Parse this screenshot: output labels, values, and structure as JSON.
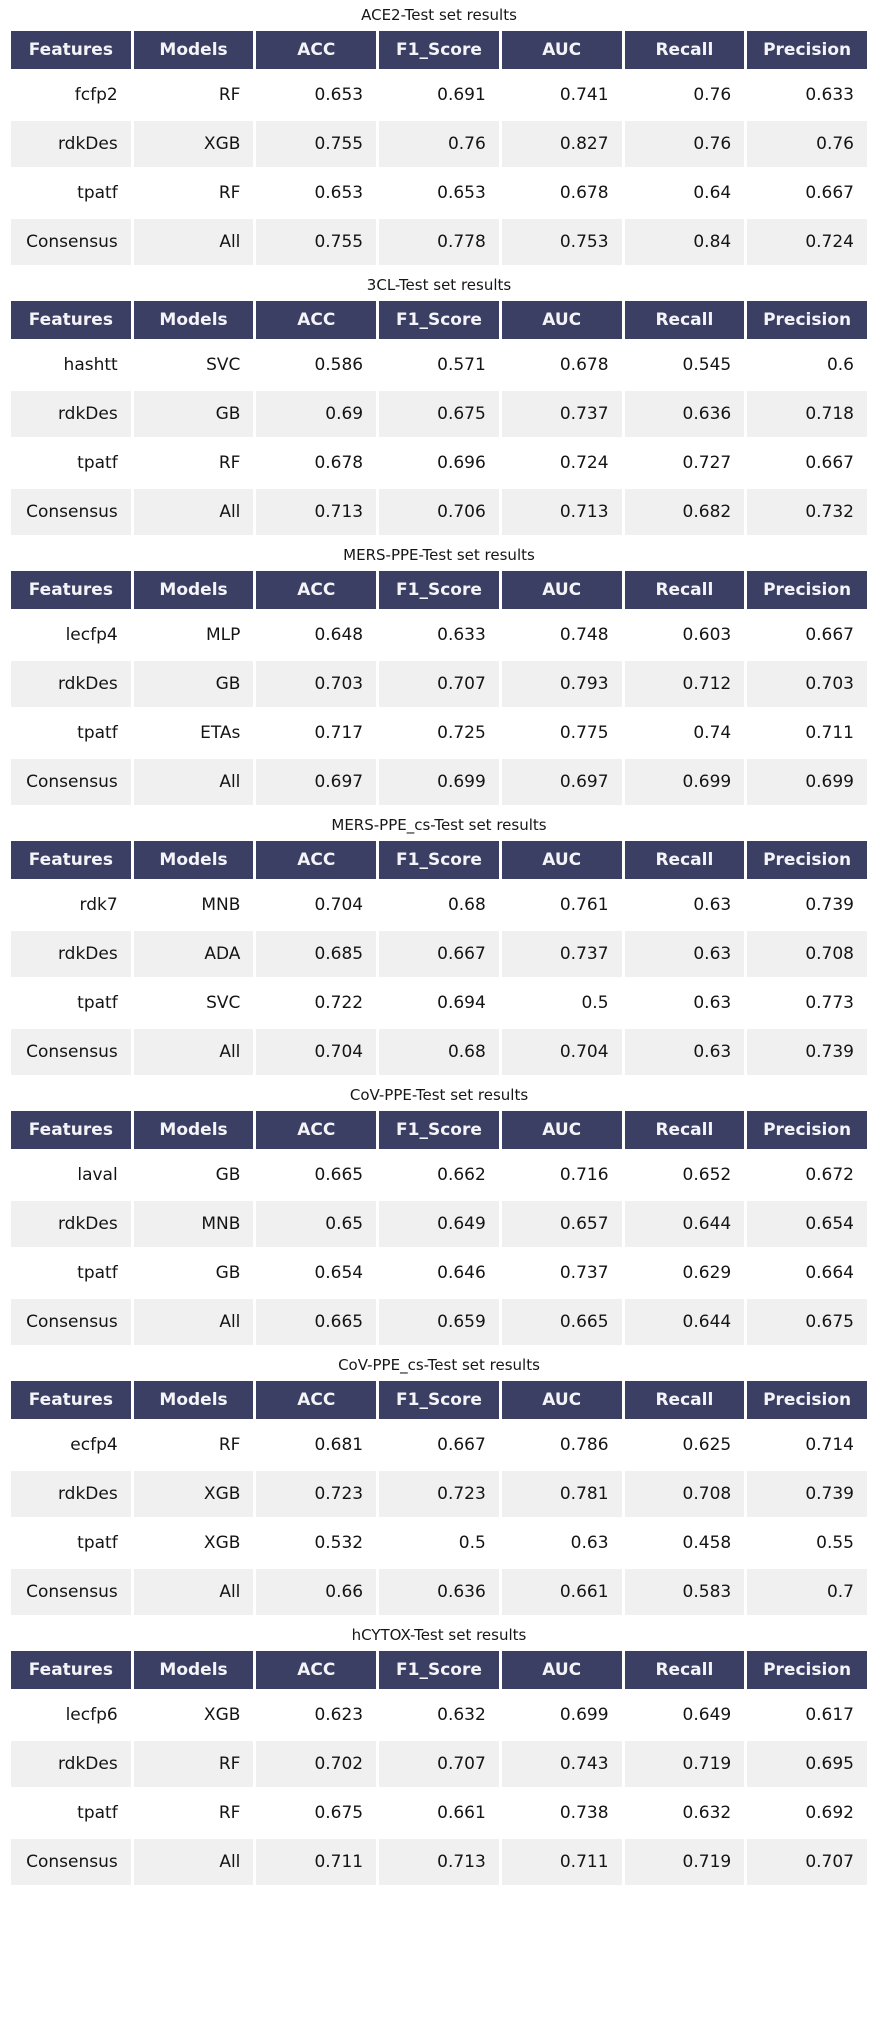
{
  "colors": {
    "header_bg": "#3a3f63",
    "header_text": "#f4f4f8",
    "row_bg": "#ffffff",
    "row_alt_bg": "#f0f0f1",
    "body_text": "#141414",
    "page_bg": "#ffffff"
  },
  "chart_data": [
    {
      "type": "table",
      "title": "ACE2-Test set results",
      "columns": [
        "Features",
        "Models",
        "ACC",
        "F1_Score",
        "AUC",
        "Recall",
        "Precision"
      ],
      "rows": [
        [
          "fcfp2",
          "RF",
          "0.653",
          "0.691",
          "0.741",
          "0.76",
          "0.633"
        ],
        [
          "rdkDes",
          "XGB",
          "0.755",
          "0.76",
          "0.827",
          "0.76",
          "0.76"
        ],
        [
          "tpatf",
          "RF",
          "0.653",
          "0.653",
          "0.678",
          "0.64",
          "0.667"
        ],
        [
          "Consensus",
          "All",
          "0.755",
          "0.778",
          "0.753",
          "0.84",
          "0.724"
        ]
      ]
    },
    {
      "type": "table",
      "title": "3CL-Test set results",
      "columns": [
        "Features",
        "Models",
        "ACC",
        "F1_Score",
        "AUC",
        "Recall",
        "Precision"
      ],
      "rows": [
        [
          "hashtt",
          "SVC",
          "0.586",
          "0.571",
          "0.678",
          "0.545",
          "0.6"
        ],
        [
          "rdkDes",
          "GB",
          "0.69",
          "0.675",
          "0.737",
          "0.636",
          "0.718"
        ],
        [
          "tpatf",
          "RF",
          "0.678",
          "0.696",
          "0.724",
          "0.727",
          "0.667"
        ],
        [
          "Consensus",
          "All",
          "0.713",
          "0.706",
          "0.713",
          "0.682",
          "0.732"
        ]
      ]
    },
    {
      "type": "table",
      "title": "MERS-PPE-Test set results",
      "columns": [
        "Features",
        "Models",
        "ACC",
        "F1_Score",
        "AUC",
        "Recall",
        "Precision"
      ],
      "rows": [
        [
          "lecfp4",
          "MLP",
          "0.648",
          "0.633",
          "0.748",
          "0.603",
          "0.667"
        ],
        [
          "rdkDes",
          "GB",
          "0.703",
          "0.707",
          "0.793",
          "0.712",
          "0.703"
        ],
        [
          "tpatf",
          "ETAs",
          "0.717",
          "0.725",
          "0.775",
          "0.74",
          "0.711"
        ],
        [
          "Consensus",
          "All",
          "0.697",
          "0.699",
          "0.697",
          "0.699",
          "0.699"
        ]
      ]
    },
    {
      "type": "table",
      "title": "MERS-PPE_cs-Test set results",
      "columns": [
        "Features",
        "Models",
        "ACC",
        "F1_Score",
        "AUC",
        "Recall",
        "Precision"
      ],
      "rows": [
        [
          "rdk7",
          "MNB",
          "0.704",
          "0.68",
          "0.761",
          "0.63",
          "0.739"
        ],
        [
          "rdkDes",
          "ADA",
          "0.685",
          "0.667",
          "0.737",
          "0.63",
          "0.708"
        ],
        [
          "tpatf",
          "SVC",
          "0.722",
          "0.694",
          "0.5",
          "0.63",
          "0.773"
        ],
        [
          "Consensus",
          "All",
          "0.704",
          "0.68",
          "0.704",
          "0.63",
          "0.739"
        ]
      ]
    },
    {
      "type": "table",
      "title": "CoV-PPE-Test set results",
      "columns": [
        "Features",
        "Models",
        "ACC",
        "F1_Score",
        "AUC",
        "Recall",
        "Precision"
      ],
      "rows": [
        [
          "laval",
          "GB",
          "0.665",
          "0.662",
          "0.716",
          "0.652",
          "0.672"
        ],
        [
          "rdkDes",
          "MNB",
          "0.65",
          "0.649",
          "0.657",
          "0.644",
          "0.654"
        ],
        [
          "tpatf",
          "GB",
          "0.654",
          "0.646",
          "0.737",
          "0.629",
          "0.664"
        ],
        [
          "Consensus",
          "All",
          "0.665",
          "0.659",
          "0.665",
          "0.644",
          "0.675"
        ]
      ]
    },
    {
      "type": "table",
      "title": "CoV-PPE_cs-Test set results",
      "columns": [
        "Features",
        "Models",
        "ACC",
        "F1_Score",
        "AUC",
        "Recall",
        "Precision"
      ],
      "rows": [
        [
          "ecfp4",
          "RF",
          "0.681",
          "0.667",
          "0.786",
          "0.625",
          "0.714"
        ],
        [
          "rdkDes",
          "XGB",
          "0.723",
          "0.723",
          "0.781",
          "0.708",
          "0.739"
        ],
        [
          "tpatf",
          "XGB",
          "0.532",
          "0.5",
          "0.63",
          "0.458",
          "0.55"
        ],
        [
          "Consensus",
          "All",
          "0.66",
          "0.636",
          "0.661",
          "0.583",
          "0.7"
        ]
      ]
    },
    {
      "type": "table",
      "title": "hCYTOX-Test set results",
      "columns": [
        "Features",
        "Models",
        "ACC",
        "F1_Score",
        "AUC",
        "Recall",
        "Precision"
      ],
      "rows": [
        [
          "lecfp6",
          "XGB",
          "0.623",
          "0.632",
          "0.699",
          "0.649",
          "0.617"
        ],
        [
          "rdkDes",
          "RF",
          "0.702",
          "0.707",
          "0.743",
          "0.719",
          "0.695"
        ],
        [
          "tpatf",
          "RF",
          "0.675",
          "0.661",
          "0.738",
          "0.632",
          "0.692"
        ],
        [
          "Consensus",
          "All",
          "0.711",
          "0.713",
          "0.711",
          "0.719",
          "0.707"
        ]
      ]
    }
  ]
}
